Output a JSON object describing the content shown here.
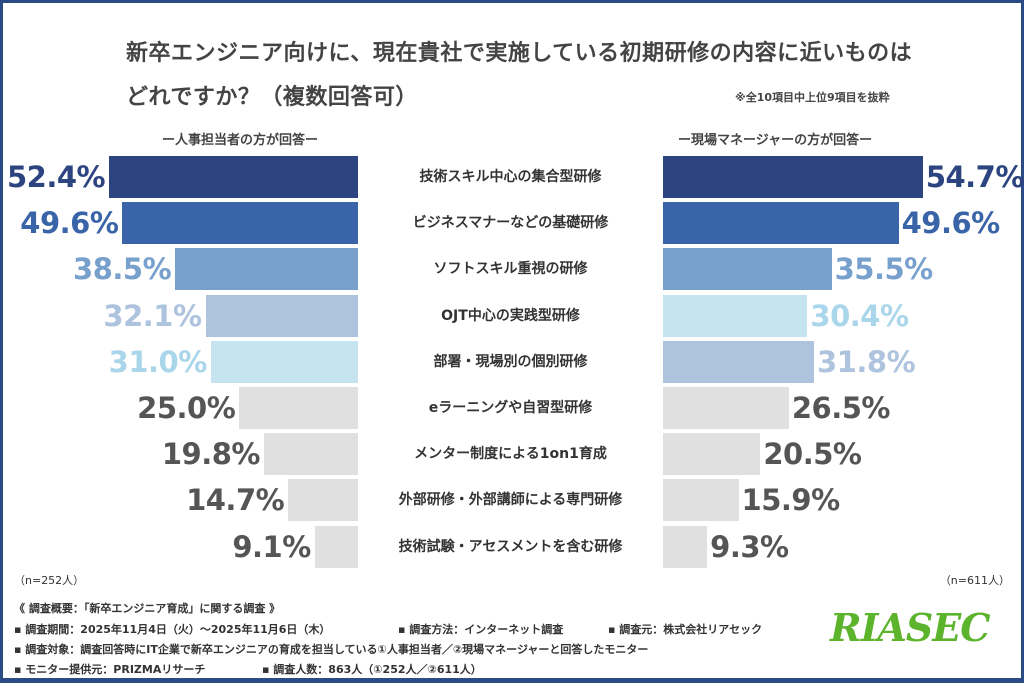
{
  "chart_data": {
    "type": "bar",
    "title": "新卒エンジニア向けに、現在貴社で実施している初期研修の内容に近いものはどれですか？（複数回答可）",
    "note": "※全10項目中上位9項目を抜粋",
    "categories": [
      "技術スキル中心の集合型研修",
      "ビジネスマナーなどの基礎研修",
      "ソフトスキル重視の研修",
      "OJT中心の実践型研修",
      "部署・現場別の個別研修",
      "eラーニングや自習型研修",
      "メンター制度による1on1育成",
      "外部研修・外部講師による専門研修",
      "技術試験・アセスメントを含む研修"
    ],
    "series": [
      {
        "name": "ー人事担当者の方が回答ー",
        "values": [
          52.4,
          49.6,
          38.5,
          32.1,
          31.0,
          25.0,
          19.8,
          14.7,
          9.1
        ],
        "n": "（n=252人）",
        "colors": [
          "#2c4580",
          "#3a64a8",
          "#77a0cc",
          "#aec3de",
          "#c6e4f0",
          "#e0e0e0",
          "#e0e0e0",
          "#e0e0e0",
          "#e0e0e0"
        ],
        "label_colors": [
          "#2c4580",
          "#3a64a8",
          "#77a0cc",
          "#aec3de",
          "#a9d6ea",
          "#555555",
          "#555555",
          "#555555",
          "#555555"
        ]
      },
      {
        "name": "ー現場マネージャーの方が回答ー",
        "values": [
          54.7,
          49.6,
          35.5,
          30.4,
          31.8,
          26.5,
          20.5,
          15.9,
          9.3
        ],
        "n": "（n=611人）",
        "colors": [
          "#2c4580",
          "#3a64a8",
          "#77a0cc",
          "#c6e4f0",
          "#aec3de",
          "#e0e0e0",
          "#e0e0e0",
          "#e0e0e0",
          "#e0e0e0"
        ],
        "label_colors": [
          "#2c4580",
          "#3a64a8",
          "#77a0cc",
          "#a9d6ea",
          "#aec3de",
          "#555555",
          "#555555",
          "#555555",
          "#555555"
        ]
      }
    ],
    "unit": "%"
  },
  "footer": {
    "line1": "《 調査概要：「新卒エンジニア育成」に関する調査 》",
    "line2a": "▪ 調査期間：2025年11月4日（火）～2025年11月6日（木）",
    "line2b": "▪ 調査方法：インターネット調査",
    "line2c": "▪ 調査元：株式会社リアセック",
    "line3": "▪ 調査対象：調査回答時にIT企業で新卒エンジニアの育成を担当している①人事担当者／②現場マネージャーと回答したモニター",
    "line4a": "▪ モニター提供元：PRIZMAリサーチ",
    "line4b": "▪ 調査人数：863人（①252人／②611人）"
  },
  "logo": "RIASEC"
}
